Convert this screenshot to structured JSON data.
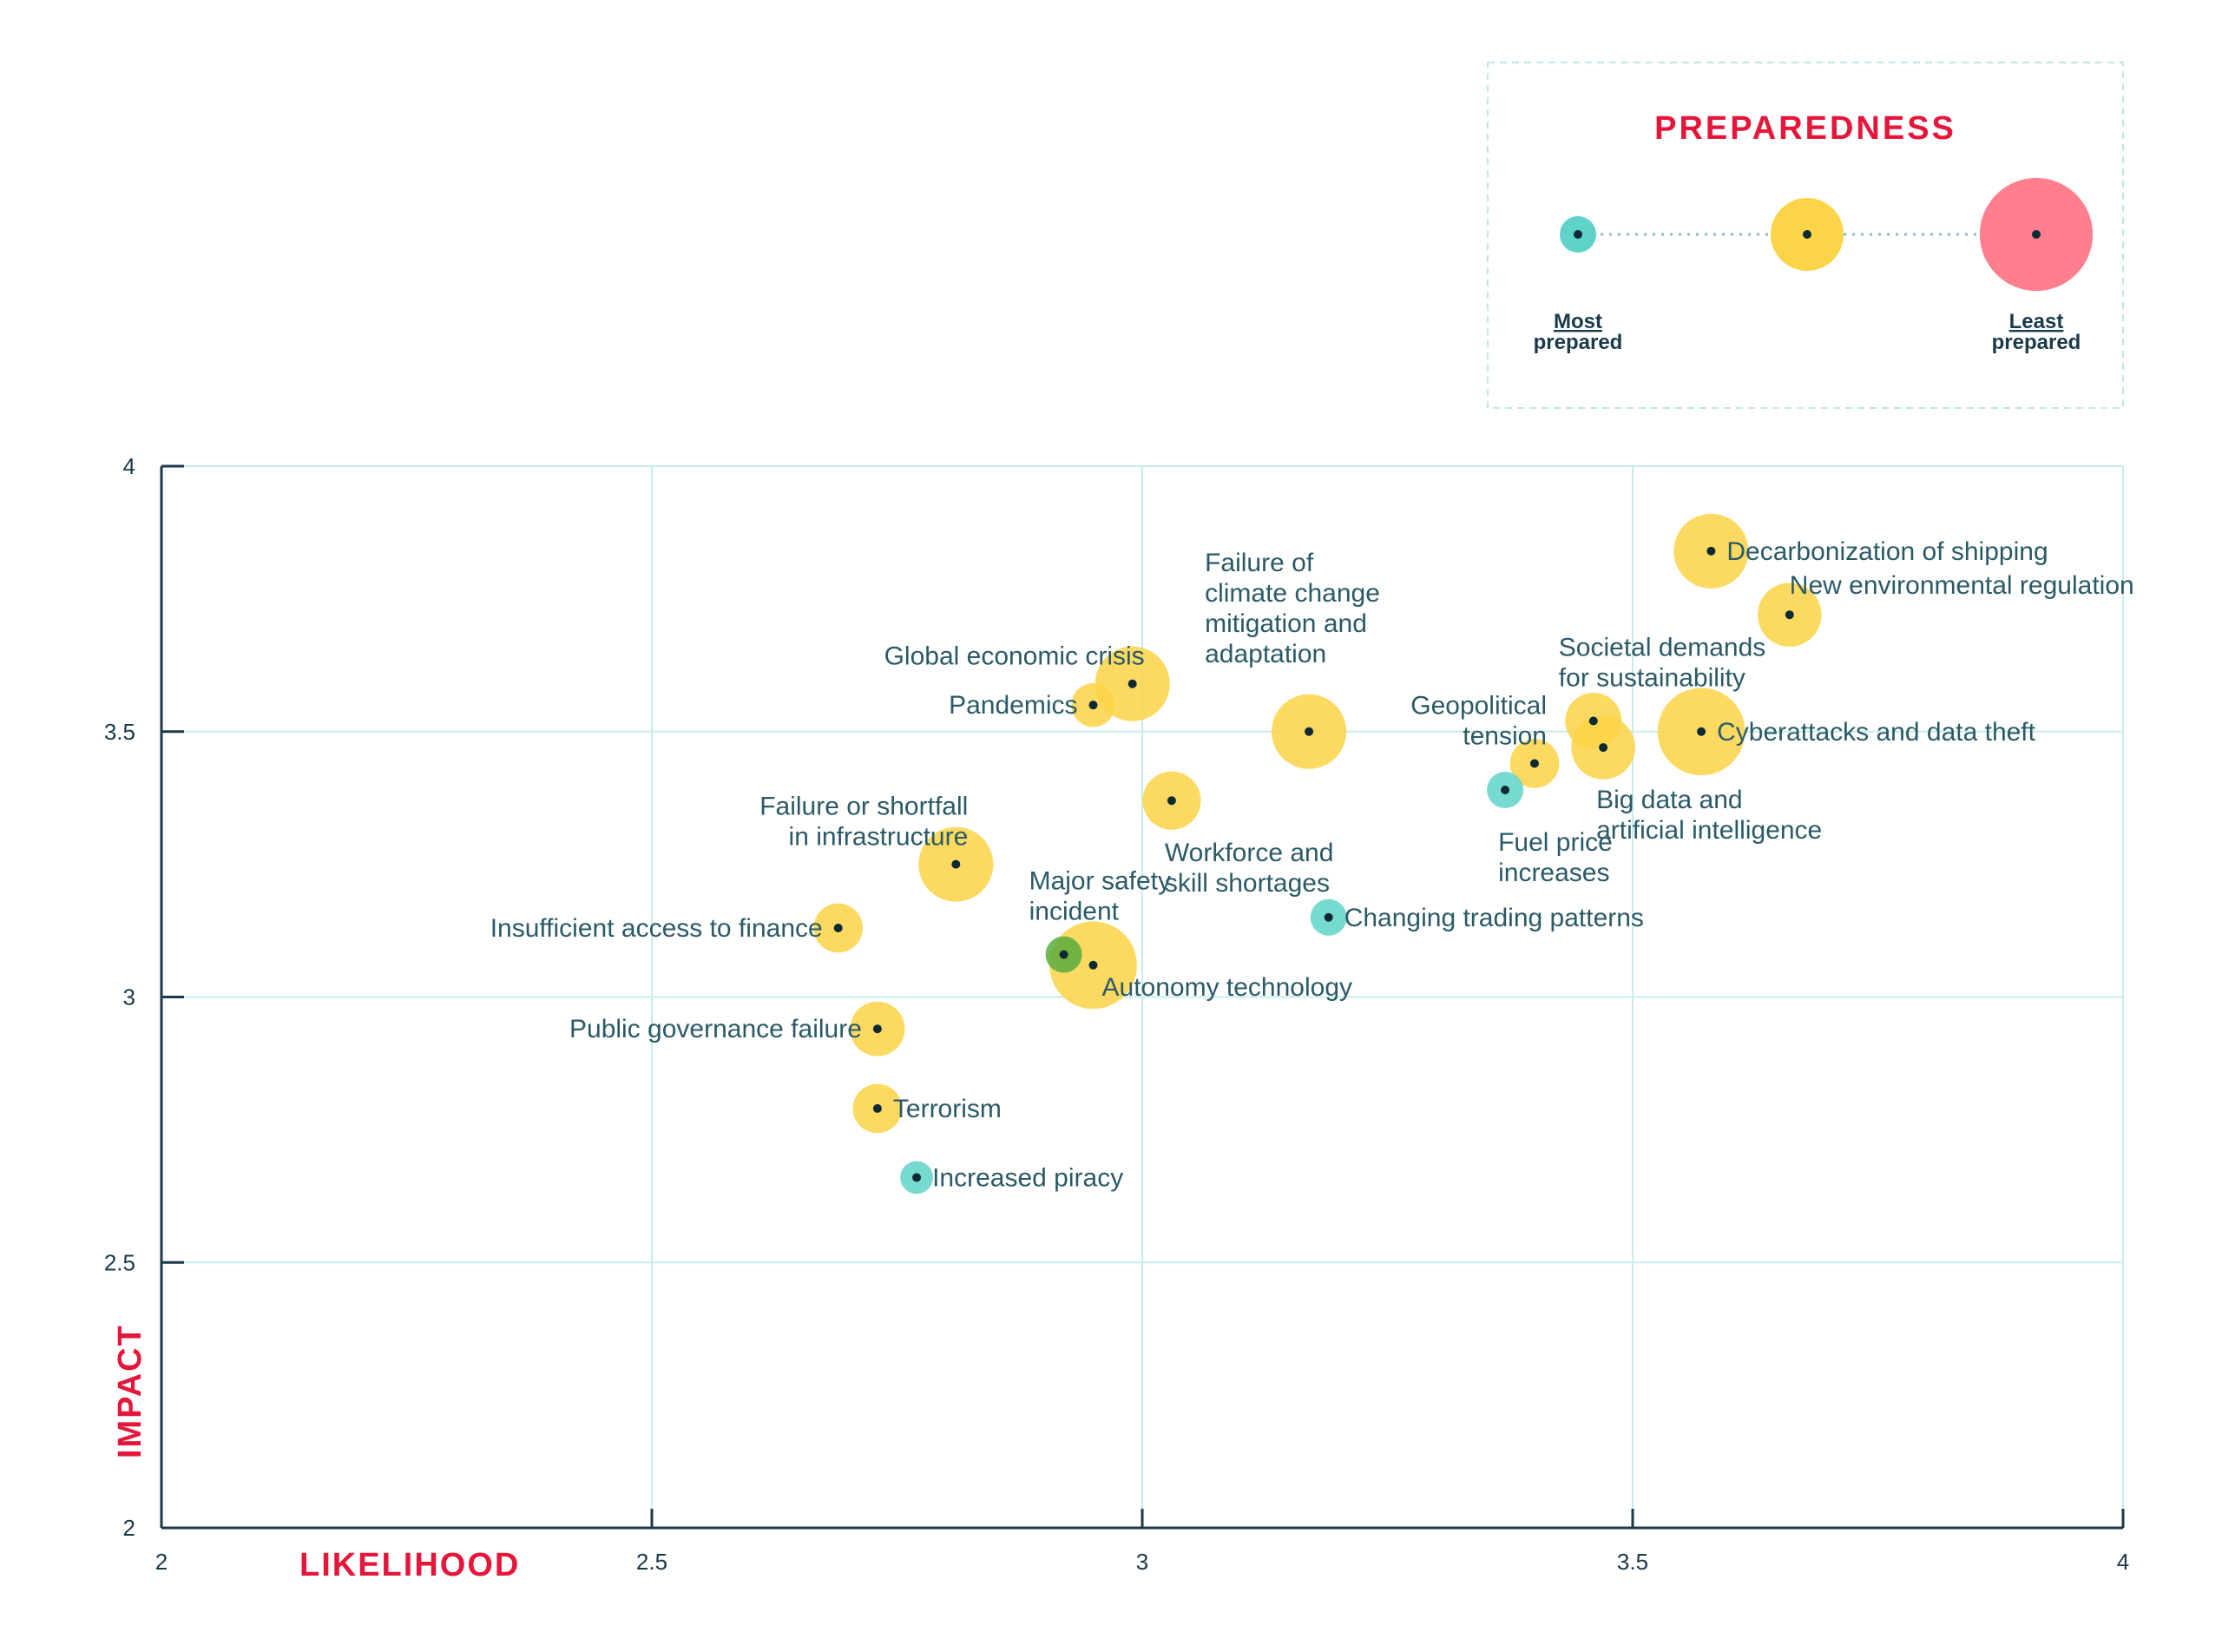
{
  "chart_data": {
    "type": "scatter",
    "title": "",
    "xlabel": "LIKELIHOOD",
    "ylabel": "IMPACT",
    "xlim": [
      2,
      4
    ],
    "ylim": [
      2,
      4
    ],
    "x_ticks": [
      "2",
      "2.5",
      "3",
      "3.5",
      "4"
    ],
    "y_ticks": [
      "2",
      "2.5",
      "3",
      "3.5",
      "4"
    ],
    "grid": true,
    "legend": {
      "title": "PREPAREDNESS",
      "placement": "top-right",
      "items": [
        {
          "label_line1": "Most",
          "label_line2": "prepared",
          "color": "#5fd3c8",
          "size": 1
        },
        {
          "label_line1": "",
          "label_line2": "",
          "color": "#fcd447",
          "size": 2
        },
        {
          "label_line1": "Least",
          "label_line2": "prepared",
          "color": "#ff7f8f",
          "size": 3.1
        }
      ]
    },
    "colors": {
      "most_prepared": "#5fd3c8",
      "medium": "#fcd447",
      "least_prepared": "#ff7f8f",
      "green": "#5aac3e",
      "grid": "#c8ecec",
      "axis": "#1a3a4a",
      "accent": "#e4173a"
    },
    "points": [
      {
        "name": "Decarbonization of shipping",
        "lines": [
          "Decarbonization of shipping"
        ],
        "x": 3.58,
        "y": 3.84,
        "preparedness": 2.05,
        "color": "#fcd447",
        "anchor": "right"
      },
      {
        "name": "New environmental regulation",
        "lines": [
          "New environmental regulation"
        ],
        "x": 3.66,
        "y": 3.72,
        "preparedness": 1.75,
        "color": "#fcd447",
        "anchor": "right-up"
      },
      {
        "name": "Societal demands for sustainability",
        "lines": [
          "Societal demands",
          "for sustainability"
        ],
        "x": 3.46,
        "y": 3.52,
        "preparedness": 1.55,
        "color": "#fcd447",
        "anchor": "above"
      },
      {
        "name": "Cyberattacks and data theft",
        "lines": [
          "Cyberattacks and data theft"
        ],
        "x": 3.57,
        "y": 3.5,
        "preparedness": 2.4,
        "color": "#fcd447",
        "anchor": "right"
      },
      {
        "name": "Big data and artificial intelligence",
        "lines": [
          "Big data and",
          "artificial intelligence"
        ],
        "x": 3.47,
        "y": 3.47,
        "preparedness": 1.75,
        "color": "#fcd447",
        "anchor": "below"
      },
      {
        "name": "Geopolitical tension",
        "lines": [
          "Geopolitical",
          "tension"
        ],
        "x": 3.4,
        "y": 3.44,
        "preparedness": 1.35,
        "color": "#fcd447",
        "anchor": "left-up"
      },
      {
        "name": "Fuel price increases",
        "lines": [
          "Fuel price",
          "increases"
        ],
        "x": 3.37,
        "y": 3.39,
        "preparedness": 1,
        "color": "#5fd3c8",
        "anchor": "below"
      },
      {
        "name": "Changing trading patterns",
        "lines": [
          "Changing trading patterns"
        ],
        "x": 3.19,
        "y": 3.15,
        "preparedness": 1,
        "color": "#5fd3c8",
        "anchor": "right"
      },
      {
        "name": "Failure of climate change mitigation and adaptation",
        "lines": [
          "Failure of",
          "climate change",
          "mitigation and",
          "adaptation"
        ],
        "x": 3.17,
        "y": 3.5,
        "preparedness": 2.05,
        "color": "#fcd447",
        "anchor": "above-left"
      },
      {
        "name": "Workforce and skill shortages",
        "lines": [
          "Workforce and",
          "skill shortages"
        ],
        "x": 3.03,
        "y": 3.37,
        "preparedness": 1.6,
        "color": "#fcd447",
        "anchor": "below"
      },
      {
        "name": "Global economic crisis",
        "lines": [
          "Global economic crisis"
        ],
        "x": 2.99,
        "y": 3.59,
        "preparedness": 2.05,
        "color": "#fcd447",
        "anchor": "left-up"
      },
      {
        "name": "Pandemics",
        "lines": [
          "Pandemics"
        ],
        "x": 2.95,
        "y": 3.55,
        "preparedness": 1.2,
        "color": "#fcd447",
        "anchor": "left"
      },
      {
        "name": "Autonomy technology",
        "lines": [
          "Autonomy technology"
        ],
        "x": 2.95,
        "y": 3.06,
        "preparedness": 2.4,
        "color": "#fcd447",
        "anchor": "right-down"
      },
      {
        "name": "Major safety incident",
        "lines": [
          "Major safety",
          "incident"
        ],
        "x": 2.92,
        "y": 3.08,
        "preparedness": 1,
        "color": "#5aac3e",
        "anchor": "above"
      },
      {
        "name": "Failure or shortfall in infrastructure",
        "lines": [
          "Failure or shortfall",
          "in infrastructure"
        ],
        "x": 2.81,
        "y": 3.25,
        "preparedness": 2.05,
        "color": "#fcd447",
        "anchor": "left-up"
      },
      {
        "name": "Insufficient access to finance",
        "lines": [
          "Insufficient access to finance"
        ],
        "x": 2.69,
        "y": 3.13,
        "preparedness": 1.35,
        "color": "#fcd447",
        "anchor": "left"
      },
      {
        "name": "Public governance failure",
        "lines": [
          "Public governance failure"
        ],
        "x": 2.73,
        "y": 2.94,
        "preparedness": 1.5,
        "color": "#fcd447",
        "anchor": "left"
      },
      {
        "name": "Terrorism",
        "lines": [
          "Terrorism"
        ],
        "x": 2.73,
        "y": 2.79,
        "preparedness": 1.35,
        "color": "#fcd447",
        "anchor": "right"
      },
      {
        "name": "Increased piracy",
        "lines": [
          "Increased piracy"
        ],
        "x": 2.77,
        "y": 2.66,
        "preparedness": 0.9,
        "color": "#5fd3c8",
        "anchor": "right"
      }
    ]
  }
}
